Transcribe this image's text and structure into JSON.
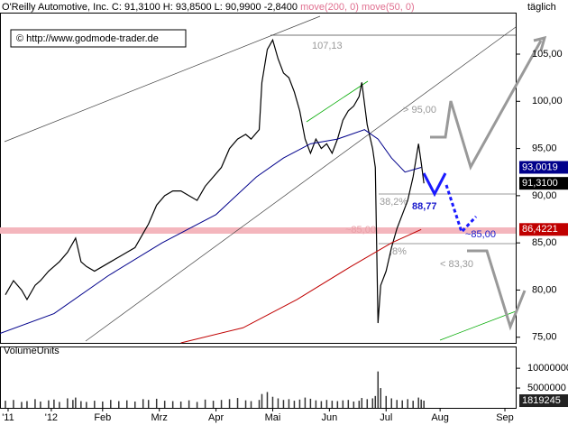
{
  "chart_data": {
    "type": "line",
    "header": {
      "title": "O'Reilly Automotive, Inc. C: 91,3100 H: 93,8500 L: 90,9900 -2,8400",
      "ma200": "move(200, 0)",
      "ma50": "move(50, 0)",
      "period": "täglich"
    },
    "watermark": "© http://www.godmode-trader.de",
    "volume_title": "VolumeUnits",
    "annotations": [
      "107,13",
      "> 95,00",
      "88,77",
      "~85,00",
      "< 83,30",
      "38,2%",
      "~85,00",
      ",8%"
    ],
    "x": [
      2,
      5,
      8,
      10,
      13,
      15,
      18,
      20,
      22,
      25,
      27,
      28,
      30,
      32,
      35,
      38,
      41,
      44,
      47,
      50,
      53,
      55,
      58,
      61,
      64,
      67,
      70,
      73,
      76,
      79,
      82,
      85,
      88,
      91,
      93,
      96,
      97,
      99,
      101,
      103,
      105,
      107,
      109,
      111,
      113,
      115,
      117,
      119,
      121,
      123,
      125,
      127,
      129,
      131,
      133,
      134,
      136,
      138,
      139,
      140,
      141,
      143,
      145,
      147,
      149,
      151,
      153,
      155,
      156,
      157
    ],
    "xlim": [
      0,
      191
    ],
    "xticks": [
      {
        "value": 3,
        "label": "'11"
      },
      {
        "value": 19,
        "label": "'12"
      },
      {
        "value": 38,
        "label": "Feb"
      },
      {
        "value": 59,
        "label": "Mrz"
      },
      {
        "value": 80,
        "label": "Apr"
      },
      {
        "value": 101,
        "label": "Mai"
      },
      {
        "value": 122,
        "label": "Jun"
      },
      {
        "value": 143,
        "label": "Jul"
      },
      {
        "value": 163,
        "label": "Aug"
      },
      {
        "value": 187,
        "label": "Sep"
      }
    ],
    "ylim": [
      74.4,
      109.4
    ],
    "yticks": [
      {
        "value": 75,
        "label": "75,00"
      },
      {
        "value": 80,
        "label": "80,00"
      },
      {
        "value": 85,
        "label": "85,00"
      },
      {
        "value": 90,
        "label": "90,00"
      },
      {
        "value": 95,
        "label": "95,00"
      },
      {
        "value": 100,
        "label": "100,00"
      },
      {
        "value": 105,
        "label": "105,00"
      }
    ],
    "series": [
      {
        "name": "Close",
        "color": "#000000",
        "values": [
          79.5,
          81,
          80,
          79,
          80.5,
          81,
          82,
          82.5,
          83,
          84,
          85,
          85.5,
          83,
          82.5,
          82,
          82.5,
          83,
          83.5,
          84,
          84.5,
          86,
          87,
          89,
          90,
          90.5,
          90.5,
          90,
          89.5,
          91,
          92,
          93,
          95,
          96,
          96.5,
          96,
          97,
          102,
          105.5,
          106.5,
          104.5,
          103,
          102.5,
          101,
          99,
          96,
          94.5,
          96,
          95,
          95.5,
          94.5,
          96,
          98,
          99,
          99.5,
          100.5,
          102,
          97.5,
          95,
          93,
          76.5,
          80.5,
          82,
          84.5,
          86.5,
          88,
          89.5,
          92,
          95.5,
          93.5,
          91.31
        ],
        "value_labels": [
          null,
          null,
          null,
          null,
          null,
          null,
          null,
          null,
          null,
          null,
          null,
          null,
          null,
          null,
          null,
          null,
          null,
          null,
          null,
          null,
          null,
          null,
          null,
          null,
          null,
          null,
          null,
          null,
          null,
          null,
          null,
          null,
          null,
          null,
          null,
          null,
          null,
          null,
          null,
          null,
          null,
          null,
          null,
          null,
          null,
          null,
          null,
          null,
          null,
          null,
          null,
          null,
          null,
          null,
          null,
          null,
          null,
          null,
          null,
          null,
          null,
          null,
          null,
          null,
          null,
          null,
          null,
          null,
          null,
          "91,3100"
        ]
      },
      {
        "name": "move(50, 0)",
        "color": "#00008b",
        "x": [
          0,
          20,
          40,
          60,
          80,
          95,
          105,
          115,
          125,
          135,
          140,
          145,
          150,
          156
        ],
        "values": [
          75.4,
          77.5,
          81.5,
          85,
          88,
          92,
          94,
          95.5,
          96,
          97,
          96,
          94,
          92.5,
          93.0019
        ],
        "value_labels": [
          null,
          null,
          null,
          null,
          null,
          null,
          null,
          null,
          null,
          null,
          null,
          null,
          null,
          "93,0019"
        ]
      },
      {
        "name": "move(200, 0)",
        "color": "#c00000",
        "x": [
          67,
          90,
          110,
          130,
          145,
          156
        ],
        "values": [
          74.4,
          76,
          79,
          82.5,
          85,
          86.4221
        ],
        "value_labels": [
          null,
          null,
          null,
          null,
          null,
          "86,4221"
        ]
      }
    ],
    "volume": {
      "values": [
        1800000,
        2000000,
        1500000,
        1700000,
        2200000,
        1600000,
        1900000,
        2100000,
        1500000,
        2400000,
        2000000,
        2600000,
        1700000,
        1500000,
        1800000,
        1600000,
        2000000,
        1700000,
        1900000,
        1600000,
        2200000,
        2000000,
        2300000,
        1800000,
        1700000,
        1600000,
        1900000,
        1500000,
        2100000,
        1800000,
        2000000,
        2200000,
        2500000,
        1900000,
        1700000,
        2000000,
        3500000,
        4000000,
        2800000,
        2400000,
        2000000,
        2200000,
        1800000,
        2100000,
        2600000,
        2300000,
        1900000,
        1700000,
        2000000,
        1800000,
        1700000,
        1900000,
        2000000,
        1600000,
        1800000,
        2500000,
        2200000,
        2400000,
        3000000,
        9200000,
        5000000,
        3000000,
        2400000,
        2000000,
        1900000,
        2200000,
        1800000,
        2600000,
        2100000,
        1819245
      ],
      "ylim": [
        0,
        15500000
      ],
      "yticks": [
        5000000,
        10000000
      ]
    }
  }
}
